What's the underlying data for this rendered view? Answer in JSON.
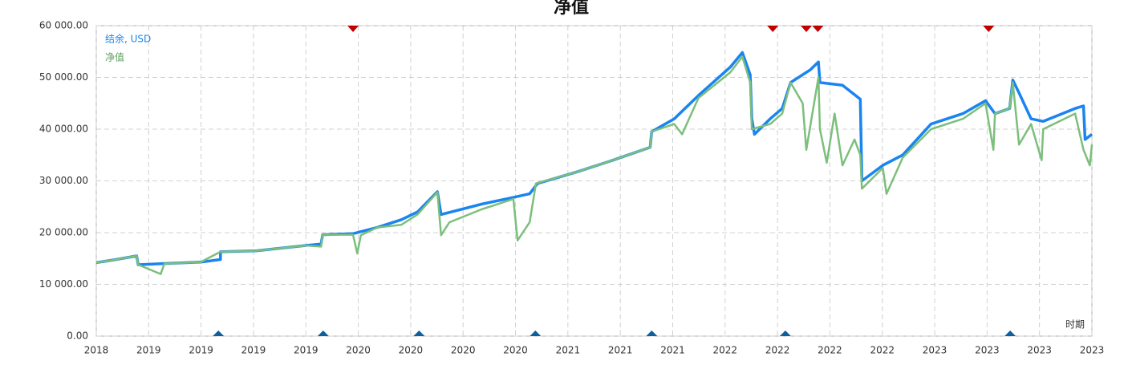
{
  "chart_data": {
    "type": "line",
    "title": "净值",
    "x_label": "时期",
    "xlim": [
      0,
      19
    ],
    "xticks": [
      {
        "value": 0,
        "label": "2018"
      },
      {
        "value": 1,
        "label": "2019"
      },
      {
        "value": 2,
        "label": "2019"
      },
      {
        "value": 3,
        "label": "2019"
      },
      {
        "value": 4,
        "label": "2019"
      },
      {
        "value": 5,
        "label": "2020"
      },
      {
        "value": 6,
        "label": "2020"
      },
      {
        "value": 7,
        "label": "2020"
      },
      {
        "value": 8,
        "label": "2020"
      },
      {
        "value": 9,
        "label": "2021"
      },
      {
        "value": 10,
        "label": "2021"
      },
      {
        "value": 11,
        "label": "2021"
      },
      {
        "value": 12,
        "label": "2022"
      },
      {
        "value": 13,
        "label": "2022"
      },
      {
        "value": 14,
        "label": "2022"
      },
      {
        "value": 15,
        "label": "2022"
      },
      {
        "value": 16,
        "label": "2023"
      },
      {
        "value": 17,
        "label": "2023"
      },
      {
        "value": 18,
        "label": "2023"
      },
      {
        "value": 19,
        "label": "2023"
      }
    ],
    "ylim": [
      0,
      60000
    ],
    "yticks": [
      {
        "value": 0,
        "label": "0.00"
      },
      {
        "value": 10000,
        "label": "10 000.00"
      },
      {
        "value": 20000,
        "label": "20 000.00"
      },
      {
        "value": 30000,
        "label": "30 000.00"
      },
      {
        "value": 40000,
        "label": "40 000.00"
      },
      {
        "value": 50000,
        "label": "50 000.00"
      },
      {
        "value": 60000,
        "label": "60 000.00"
      }
    ],
    "grid": true,
    "series": [
      {
        "name": "结余, USD",
        "color": "#1a84f0",
        "x": [
          0,
          0.38,
          0.77,
          0.8,
          1.23,
          1.99,
          2.37,
          2.37,
          3.06,
          3.98,
          4.29,
          4.32,
          4.9,
          5.36,
          5.82,
          6.13,
          6.51,
          6.58,
          7.35,
          7.96,
          8.27,
          8.42,
          9.19,
          9.8,
          10.57,
          10.6,
          11.03,
          11.49,
          12.1,
          12.33,
          12.48,
          12.51,
          12.56,
          12.86,
          13.09,
          13.25,
          13.63,
          13.78,
          13.81,
          14.24,
          14.58,
          14.61,
          15.01,
          15.39,
          15.93,
          16.54,
          16.97,
          17.15,
          17.43,
          17.49,
          17.61,
          17.84,
          18.07,
          18.68,
          18.84,
          18.87,
          19
        ],
        "values": [
          14200,
          14800,
          15500,
          13800,
          14000,
          14300,
          14800,
          16300,
          16500,
          17500,
          17800,
          19600,
          19800,
          21000,
          22500,
          24000,
          27900,
          23500,
          25500,
          26800,
          27500,
          29500,
          31800,
          33800,
          36500,
          39500,
          42000,
          46500,
          52000,
          54800,
          50500,
          42000,
          39000,
          42000,
          44000,
          49000,
          51500,
          53000,
          49000,
          48500,
          45800,
          30000,
          33000,
          35000,
          41000,
          43000,
          45500,
          43000,
          44000,
          49500,
          47000,
          42000,
          41500,
          44000,
          44500,
          38000,
          39000
        ]
      },
      {
        "name": "净值",
        "color": "#7cbf7c",
        "x": [
          0,
          0.38,
          0.77,
          0.8,
          1.23,
          1.3,
          1.99,
          2.37,
          3.06,
          3.98,
          4.29,
          4.32,
          4.9,
          4.98,
          5.05,
          5.36,
          5.82,
          6.13,
          6.51,
          6.58,
          6.74,
          7.35,
          7.96,
          8.04,
          8.27,
          8.39,
          9.19,
          9.8,
          10.57,
          10.6,
          11.03,
          11.18,
          11.49,
          12.1,
          12.33,
          12.48,
          12.51,
          12.86,
          13.09,
          13.25,
          13.48,
          13.55,
          13.78,
          13.81,
          13.94,
          14.09,
          14.24,
          14.47,
          14.58,
          14.61,
          15.01,
          15.08,
          15.39,
          15.93,
          16.54,
          16.97,
          17.12,
          17.15,
          17.43,
          17.49,
          17.61,
          17.84,
          18.04,
          18.07,
          18.68,
          18.84,
          18.96,
          19
        ],
        "values": [
          14200,
          14800,
          15500,
          13800,
          12000,
          14000,
          14300,
          16300,
          16500,
          17500,
          17300,
          19600,
          19600,
          16000,
          19500,
          21000,
          21500,
          23500,
          27800,
          19500,
          22000,
          24500,
          26500,
          18500,
          22000,
          29500,
          31800,
          33800,
          36500,
          39500,
          41000,
          39000,
          46000,
          51000,
          54000,
          49000,
          40000,
          41000,
          43000,
          49000,
          45000,
          36000,
          50000,
          40000,
          33500,
          43000,
          33000,
          38000,
          35000,
          28500,
          32500,
          27500,
          34500,
          40000,
          42000,
          45000,
          36000,
          43000,
          44000,
          49000,
          37000,
          41000,
          34000,
          40000,
          43000,
          36000,
          33000,
          37000
        ]
      }
    ],
    "top_markers": {
      "color": "#c00000",
      "x": [
        4.9,
        12.91,
        13.55,
        13.77,
        17.03
      ]
    },
    "bottom_markers": {
      "color": "#0d5f9e",
      "x": [
        2.33,
        4.33,
        6.16,
        8.38,
        10.6,
        13.15,
        17.44
      ]
    }
  }
}
